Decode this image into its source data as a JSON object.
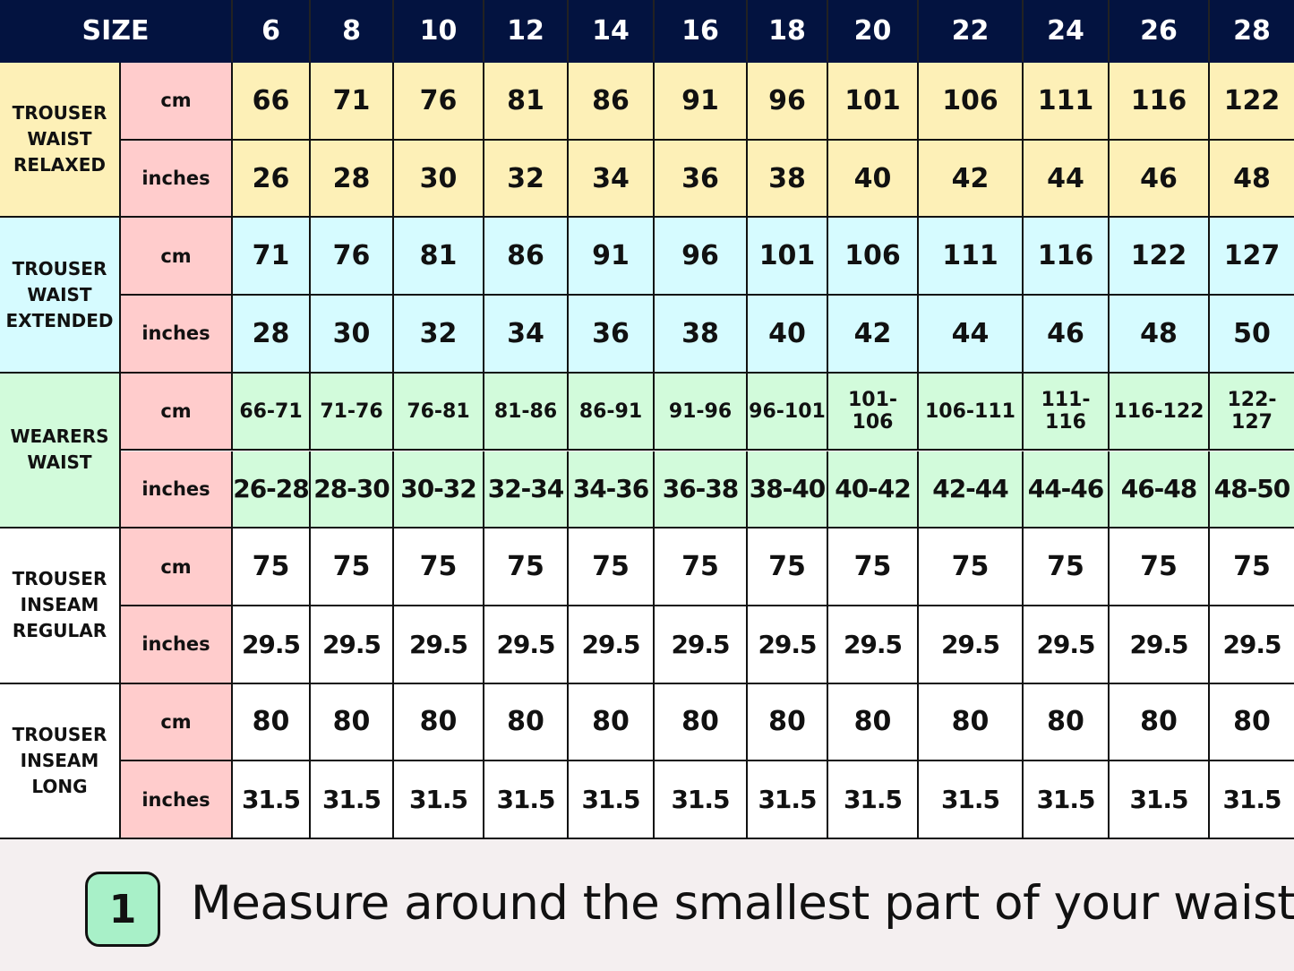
{
  "header": {
    "label": "SIZE",
    "sizes": [
      6,
      8,
      10,
      12,
      14,
      16,
      18,
      20,
      22,
      24,
      26,
      28
    ]
  },
  "groups": [
    {
      "label": "TROUSER\nWAIST\nRELAXED",
      "rows": [
        {
          "unit": "cm",
          "values": [
            66,
            71,
            76,
            81,
            86,
            91,
            96,
            101,
            106,
            111,
            116,
            122
          ]
        },
        {
          "unit": "inches",
          "values": [
            26,
            28,
            30,
            32,
            34,
            36,
            38,
            40,
            42,
            44,
            46,
            48
          ]
        }
      ]
    },
    {
      "label": "TROUSER\nWAIST\nEXTENDED",
      "rows": [
        {
          "unit": "cm",
          "values": [
            71,
            76,
            81,
            86,
            91,
            96,
            101,
            106,
            111,
            116,
            122,
            127
          ]
        },
        {
          "unit": "inches",
          "values": [
            28,
            30,
            32,
            34,
            36,
            38,
            40,
            42,
            44,
            46,
            48,
            50
          ]
        }
      ]
    },
    {
      "label": "WEARERS\nWAIST",
      "rows": [
        {
          "unit": "cm",
          "values": [
            "66-71",
            "71-76",
            "76-81",
            "81-86",
            "86-91",
            "91-96",
            "96-101",
            "101-106",
            "106-111",
            "111-116",
            "116-122",
            "122-127"
          ]
        },
        {
          "unit": "inches",
          "values": [
            "26-28",
            "28-30",
            "30-32",
            "32-34",
            "34-36",
            "36-38",
            "38-40",
            "40-42",
            "42-44",
            "44-46",
            "46-48",
            "48-50"
          ]
        }
      ]
    },
    {
      "label": "TROUSER\nINSEAM\nREGULAR",
      "rows": [
        {
          "unit": "cm",
          "values": [
            75,
            75,
            75,
            75,
            75,
            75,
            75,
            75,
            75,
            75,
            75,
            75
          ]
        },
        {
          "unit": "inches",
          "values": [
            29.5,
            29.5,
            29.5,
            29.5,
            29.5,
            29.5,
            29.5,
            29.5,
            29.5,
            29.5,
            29.5,
            29.5
          ]
        }
      ]
    },
    {
      "label": "TROUSER\nINSEAM\nLONG",
      "rows": [
        {
          "unit": "cm",
          "values": [
            80,
            80,
            80,
            80,
            80,
            80,
            80,
            80,
            80,
            80,
            80,
            80
          ]
        },
        {
          "unit": "inches",
          "values": [
            31.5,
            31.5,
            31.5,
            31.5,
            31.5,
            31.5,
            31.5,
            31.5,
            31.5,
            31.5,
            31.5,
            31.5
          ]
        }
      ]
    }
  ],
  "instruction": {
    "step": "1",
    "text": "Measure around the smallest part of your waist."
  }
}
